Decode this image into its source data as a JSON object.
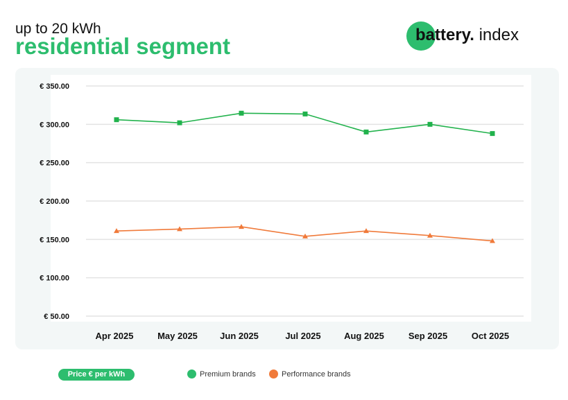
{
  "header": {
    "subtitle": "up to 20 kWh",
    "title": "residential segment"
  },
  "logo": {
    "bold": "battery.",
    "regular": "index"
  },
  "colors": {
    "brand_green": "#2dbd6e",
    "premium": "#21b24c",
    "performance": "#f07a3a"
  },
  "legend": {
    "badge": "Price € per kWh",
    "items": [
      {
        "label": "Premium brands",
        "color": "#2dbd6e"
      },
      {
        "label": "Performance brands",
        "color": "#f07a3a"
      }
    ]
  },
  "chart_data": {
    "type": "line",
    "categories": [
      "Apr 2025",
      "May 2025",
      "Jun 2025",
      "Jul 2025",
      "Aug 2025",
      "Sep 2025",
      "Oct 2025"
    ],
    "ylim": [
      50,
      350
    ],
    "yticks": [
      350,
      300,
      250,
      200,
      150,
      100,
      50
    ],
    "ytick_labels": [
      "€ 350.00",
      "€ 300.00",
      "€ 250.00",
      "€ 200.00",
      "€ 150.00",
      "€ 100.00",
      "€ 50.00"
    ],
    "grid": true,
    "legend_position": "bottom",
    "series": [
      {
        "name": "Premium brands",
        "marker": "square",
        "color": "#21b24c",
        "values": [
          306,
          302,
          314.5,
          313.5,
          290,
          300,
          288
        ]
      },
      {
        "name": "Performance brands",
        "marker": "triangle",
        "color": "#f07a3a",
        "values": [
          161,
          163.5,
          166.5,
          154,
          161,
          155,
          148
        ]
      }
    ]
  }
}
